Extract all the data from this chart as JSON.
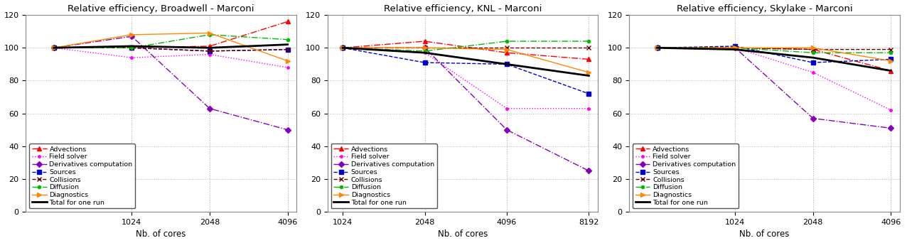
{
  "titles": [
    "Relative efficiency, Broadwell - Marconi",
    "Relative efficiency, KNL - Marconi",
    "Relative efficiency, Skylake - Marconi"
  ],
  "xlabel": "Nb. of cores",
  "ylim": [
    0,
    120
  ],
  "yticks": [
    0,
    20,
    40,
    60,
    80,
    100,
    120
  ],
  "subplots": [
    {
      "xvals": [
        512,
        1024,
        2048,
        4096
      ],
      "xticks": [
        1024,
        2048,
        4096
      ],
      "xlim_factor": [
        0.78,
        1.08
      ],
      "series": {
        "Advections": [
          100,
          100,
          101,
          116
        ],
        "Field solver": [
          100,
          94,
          96,
          88
        ],
        "Derivatives computation": [
          100,
          107,
          63,
          50
        ],
        "Sources": [
          100,
          100,
          98,
          99
        ],
        "Collisions": [
          100,
          100,
          98,
          99
        ],
        "Diffusion": [
          100,
          100,
          108,
          105
        ],
        "Diagnostics": [
          100,
          108,
          109,
          92
        ],
        "Total": [
          100,
          101,
          100,
          102
        ]
      }
    },
    {
      "xvals": [
        1024,
        2048,
        4096,
        8192
      ],
      "xticks": [
        1024,
        2048,
        4096,
        8192
      ],
      "xlim_factor": [
        0.88,
        1.08
      ],
      "series": {
        "Advections": [
          100,
          104,
          97,
          93
        ],
        "Field solver": [
          100,
          97,
          63,
          63
        ],
        "Derivatives computation": [
          100,
          100,
          50,
          25
        ],
        "Sources": [
          100,
          91,
          90,
          72
        ],
        "Collisions": [
          100,
          100,
          100,
          100
        ],
        "Diffusion": [
          100,
          98,
          104,
          104
        ],
        "Diagnostics": [
          100,
          100,
          99,
          85
        ],
        "Total": [
          100,
          97,
          90,
          83
        ]
      }
    },
    {
      "xvals": [
        512,
        1024,
        2048,
        4096
      ],
      "xticks": [
        1024,
        2048,
        4096
      ],
      "xlim_factor": [
        0.78,
        1.08
      ],
      "series": {
        "Advections": [
          100,
          100,
          99,
          86
        ],
        "Field solver": [
          100,
          100,
          85,
          62
        ],
        "Derivatives computation": [
          100,
          100,
          57,
          51
        ],
        "Sources": [
          100,
          101,
          91,
          93
        ],
        "Collisions": [
          100,
          100,
          99,
          99
        ],
        "Diffusion": [
          100,
          100,
          97,
          97
        ],
        "Diagnostics": [
          100,
          100,
          100,
          92
        ],
        "Total": [
          100,
          99,
          94,
          86
        ]
      }
    }
  ],
  "series_order": [
    "Advections",
    "Field solver",
    "Derivatives computation",
    "Sources",
    "Collisions",
    "Diffusion",
    "Diagnostics",
    "Total"
  ],
  "series_styles": {
    "Advections": {
      "color": "#ff0000",
      "linestyle": "-.",
      "marker": "^",
      "markersize": 4,
      "linewidth": 1.0,
      "dashes": []
    },
    "Field solver": {
      "color": "#ff00ff",
      "linestyle": ":",
      "marker": ".",
      "markersize": 5,
      "linewidth": 1.0,
      "dashes": []
    },
    "Derivatives computation": {
      "color": "#8800bb",
      "linestyle": "-.",
      "marker": "D",
      "markersize": 4,
      "linewidth": 1.0,
      "dashes": []
    },
    "Sources": {
      "color": "#0000cc",
      "linestyle": "--",
      "marker": "s",
      "markersize": 4,
      "linewidth": 1.0,
      "dashes": []
    },
    "Collisions": {
      "color": "#660000",
      "linestyle": "--",
      "marker": "x",
      "markersize": 4,
      "linewidth": 1.0,
      "dashes": []
    },
    "Diffusion": {
      "color": "#00bb00",
      "linestyle": "-.",
      "marker": "o",
      "markersize": 3,
      "linewidth": 1.0,
      "dashes": []
    },
    "Diagnostics": {
      "color": "#ff8800",
      "linestyle": "-",
      "marker": ">",
      "markersize": 4,
      "linewidth": 1.0,
      "dashes": []
    },
    "Total": {
      "color": "#000000",
      "linestyle": "-",
      "marker": "None",
      "markersize": 0,
      "linewidth": 2.0,
      "dashes": []
    }
  },
  "legend_labels": {
    "Advections": "Advections",
    "Field solver": "Field solver",
    "Derivatives computation": "Derivatives computation",
    "Sources": "Sources",
    "Collisions": "Collisions",
    "Diffusion": "Diffusion",
    "Diagnostics": "Diagnostics",
    "Total": "Total for one run"
  },
  "background_color": "#ffffff",
  "grid_h_color": "#bbbbbb",
  "grid_v_color": "#cc9999",
  "grid_linestyle": ":"
}
